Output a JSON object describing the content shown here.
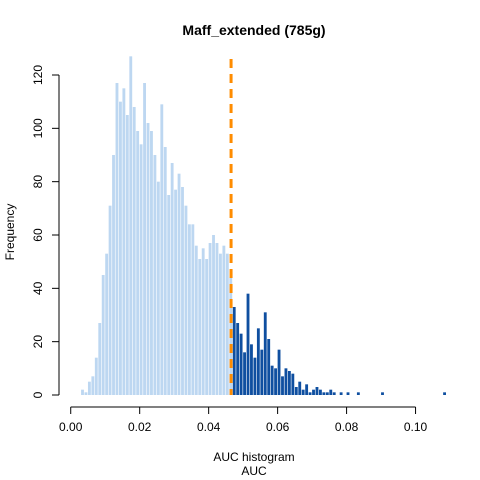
{
  "chart_data": {
    "type": "bar",
    "title": "Maff_extended (785g)",
    "xlabel": "AUC histogram",
    "xlabel2": "AUC",
    "ylabel": "Frequency",
    "xlim": [
      -0.0034,
      0.1097
    ],
    "ylim": [
      0,
      126
    ],
    "x_ticks": [
      "0.00",
      "0.02",
      "0.04",
      "0.06",
      "0.08",
      "0.10"
    ],
    "y_ticks": [
      "0",
      "20",
      "40",
      "60",
      "80",
      "100",
      "120"
    ],
    "bin_start": 0.0,
    "bin_width": 0.001,
    "threshold": 0.0465,
    "colors": {
      "below_threshold": "#bdd7f1",
      "above_threshold": "#0f4fa0",
      "threshold_line": "#ff8c00"
    },
    "frequencies": [
      0,
      0,
      0,
      2,
      1,
      5,
      7,
      14,
      27,
      45,
      53,
      71,
      90,
      117,
      110,
      115,
      105,
      127,
      108,
      99,
      94,
      117,
      102,
      99,
      90,
      80,
      109,
      93,
      75,
      87,
      77,
      83,
      78,
      71,
      64,
      64,
      56,
      51,
      55,
      51,
      57,
      60,
      57,
      53,
      56,
      53,
      44,
      33,
      27,
      23,
      16,
      38,
      19,
      14,
      25,
      17,
      31,
      21,
      11,
      10,
      17,
      7,
      10,
      9,
      8,
      3,
      5,
      2,
      4,
      1,
      2,
      3,
      2,
      1,
      1,
      2,
      1,
      0,
      1,
      0,
      1,
      0,
      0,
      1,
      0,
      0,
      0,
      0,
      0,
      0,
      1,
      0,
      0,
      0,
      0,
      0,
      0,
      0,
      0,
      0,
      0,
      0,
      0,
      0,
      0,
      0,
      0,
      0,
      1
    ]
  }
}
